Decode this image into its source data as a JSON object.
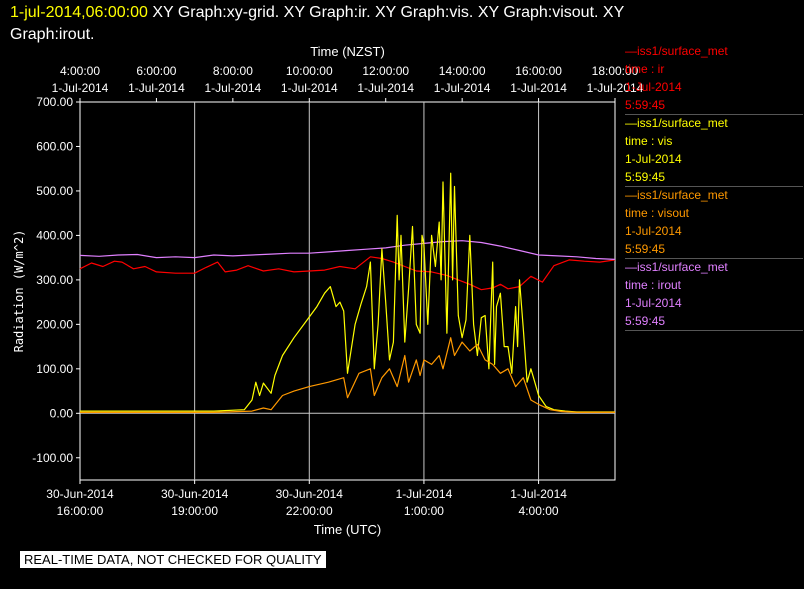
{
  "header": {
    "timestamp": "1-jul-2014,06:00:00",
    "graphs_line1": " XY Graph:xy-grid.  XY Graph:ir.  XY Graph:vis.  XY Graph:visout.  XY",
    "graphs_line2": "Graph:irout."
  },
  "notice": "REAL-TIME DATA, NOT CHECKED FOR QUALITY",
  "legend": [
    {
      "name": "—iss1/surface_met",
      "var": "time : ir",
      "date": "1-Jul-2014",
      "time": "5:59:45",
      "color": "#ff0000"
    },
    {
      "name": "—iss1/surface_met",
      "var": "time : vis",
      "date": "1-Jul-2014",
      "time": "5:59:45",
      "color": "#ffff00"
    },
    {
      "name": "—iss1/surface_met",
      "var": "time : visout",
      "date": "1-Jul-2014",
      "time": "5:59:45",
      "color": "#ff9900"
    },
    {
      "name": "—iss1/surface_met",
      "var": "time : irout",
      "date": "1-Jul-2014",
      "time": "5:59:45",
      "color": "#e080ff"
    }
  ],
  "chart_data": {
    "type": "line",
    "xlabel": "Time (UTC)",
    "x2label": "Time (NZST)",
    "ylabel": "Radiation (W/m^2)",
    "x_unit": "hours from 30-Jun-2014 16:00 UTC",
    "xlim": [
      0,
      14
    ],
    "ylim": [
      -150,
      700
    ],
    "y_ticks": [
      "-100.00",
      "0.00",
      "100.00",
      "200.00",
      "300.00",
      "400.00",
      "500.00",
      "600.00",
      "700.00"
    ],
    "y_tick_values": [
      -100,
      0,
      100,
      200,
      300,
      400,
      500,
      600,
      700
    ],
    "x_ticks": [
      {
        "h": 0,
        "date": "30-Jun-2014",
        "time": "16:00:00"
      },
      {
        "h": 3,
        "date": "30-Jun-2014",
        "time": "19:00:00"
      },
      {
        "h": 6,
        "date": "30-Jun-2014",
        "time": "22:00:00"
      },
      {
        "h": 9,
        "date": "1-Jul-2014",
        "time": "1:00:00"
      },
      {
        "h": 12,
        "date": "1-Jul-2014",
        "time": "4:00:00"
      }
    ],
    "x2_ticks": [
      {
        "h": 0,
        "time": "4:00:00",
        "date": "1-Jul-2014"
      },
      {
        "h": 2,
        "time": "6:00:00",
        "date": "1-Jul-2014"
      },
      {
        "h": 4,
        "time": "8:00:00",
        "date": "1-Jul-2014"
      },
      {
        "h": 6,
        "time": "10:00:00",
        "date": "1-Jul-2014"
      },
      {
        "h": 8,
        "time": "12:00:00",
        "date": "1-Jul-2014"
      },
      {
        "h": 10,
        "time": "14:00:00",
        "date": "1-Jul-2014"
      },
      {
        "h": 12,
        "time": "16:00:00",
        "date": "1-Jul-2014"
      },
      {
        "h": 14,
        "time": "18:00:00",
        "date": "1-Jul-2014"
      }
    ],
    "grid_v": [
      3,
      6,
      9,
      12
    ],
    "grid_h": [
      0
    ],
    "series": [
      {
        "name": "ir",
        "color": "#ff0000",
        "x": [
          0,
          0.3,
          0.6,
          0.9,
          1.1,
          1.4,
          1.7,
          2.0,
          2.5,
          3.0,
          3.3,
          3.6,
          3.8,
          4.1,
          4.4,
          4.8,
          5.2,
          5.6,
          6.0,
          6.4,
          6.8,
          7.2,
          7.6,
          7.9,
          8.2,
          8.5,
          8.8,
          9.2,
          9.6,
          9.9,
          10.2,
          10.5,
          10.8,
          11.0,
          11.2,
          11.5,
          11.8,
          12.1,
          12.4,
          12.8,
          13.2,
          13.6,
          14.0
        ],
        "y": [
          325,
          338,
          330,
          342,
          340,
          325,
          330,
          318,
          315,
          315,
          328,
          340,
          318,
          322,
          332,
          320,
          325,
          318,
          320,
          322,
          330,
          325,
          352,
          348,
          340,
          330,
          320,
          318,
          310,
          300,
          290,
          278,
          282,
          290,
          280,
          285,
          308,
          295,
          332,
          345,
          342,
          340,
          345
        ]
      },
      {
        "name": "irout",
        "color": "#e080ff",
        "x": [
          0,
          0.5,
          1.0,
          1.5,
          2.0,
          2.5,
          3.0,
          3.5,
          4.0,
          4.5,
          5.0,
          5.5,
          6.0,
          6.5,
          7.0,
          7.5,
          8.0,
          8.5,
          9.0,
          9.5,
          10.0,
          10.5,
          11.0,
          11.5,
          12.0,
          12.5,
          13.0,
          13.5,
          14.0
        ],
        "y": [
          355,
          353,
          356,
          357,
          350,
          352,
          350,
          356,
          354,
          356,
          358,
          360,
          360,
          363,
          366,
          369,
          372,
          378,
          382,
          386,
          388,
          384,
          376,
          366,
          356,
          354,
          352,
          348,
          346
        ]
      },
      {
        "name": "vis",
        "color": "#ffff00",
        "x": [
          0,
          3.5,
          4.3,
          4.5,
          4.6,
          4.7,
          4.8,
          5.0,
          5.1,
          5.3,
          5.6,
          5.9,
          6.2,
          6.4,
          6.55,
          6.7,
          6.8,
          6.9,
          7.0,
          7.2,
          7.35,
          7.5,
          7.6,
          7.7,
          7.8,
          7.9,
          8.0,
          8.1,
          8.2,
          8.3,
          8.35,
          8.4,
          8.5,
          8.6,
          8.7,
          8.8,
          8.9,
          8.95,
          9.0,
          9.1,
          9.2,
          9.3,
          9.4,
          9.45,
          9.5,
          9.6,
          9.7,
          9.75,
          9.8,
          9.9,
          10.0,
          10.1,
          10.2,
          10.3,
          10.4,
          10.5,
          10.6,
          10.7,
          10.8,
          10.85,
          10.9,
          11.0,
          11.1,
          11.2,
          11.3,
          11.4,
          11.45,
          11.5,
          11.6,
          11.7,
          11.8,
          11.9,
          12.0,
          12.2,
          12.4,
          12.7,
          13.0,
          14.0
        ],
        "y": [
          5,
          5,
          8,
          30,
          70,
          40,
          68,
          45,
          85,
          130,
          170,
          205,
          240,
          270,
          285,
          240,
          250,
          230,
          90,
          200,
          245,
          285,
          340,
          100,
          200,
          370,
          250,
          120,
          160,
          445,
          300,
          400,
          160,
          280,
          420,
          200,
          180,
          400,
          380,
          200,
          400,
          330,
          430,
          300,
          520,
          180,
          540,
          300,
          510,
          220,
          170,
          210,
          400,
          200,
          130,
          215,
          220,
          100,
          340,
          110,
          240,
          270,
          150,
          150,
          90,
          240,
          150,
          300,
          190,
          70,
          100,
          70,
          40,
          15,
          8,
          5,
          3,
          3
        ]
      },
      {
        "name": "visout",
        "color": "#ff9900",
        "x": [
          0,
          3.5,
          4.5,
          4.8,
          5.0,
          5.3,
          5.6,
          6.0,
          6.5,
          6.9,
          7.0,
          7.3,
          7.6,
          7.7,
          7.9,
          8.1,
          8.3,
          8.5,
          8.6,
          8.8,
          8.9,
          9.0,
          9.2,
          9.4,
          9.5,
          9.7,
          9.8,
          10.0,
          10.2,
          10.4,
          10.6,
          10.8,
          11.0,
          11.2,
          11.4,
          11.6,
          11.8,
          12.0,
          12.3,
          12.6,
          13.0,
          14.0
        ],
        "y": [
          2,
          2,
          5,
          12,
          8,
          40,
          50,
          60,
          70,
          80,
          35,
          90,
          100,
          40,
          80,
          100,
          60,
          130,
          70,
          120,
          85,
          120,
          110,
          130,
          100,
          170,
          130,
          160,
          140,
          155,
          120,
          110,
          90,
          100,
          60,
          80,
          30,
          20,
          8,
          4,
          2,
          2
        ]
      }
    ]
  }
}
